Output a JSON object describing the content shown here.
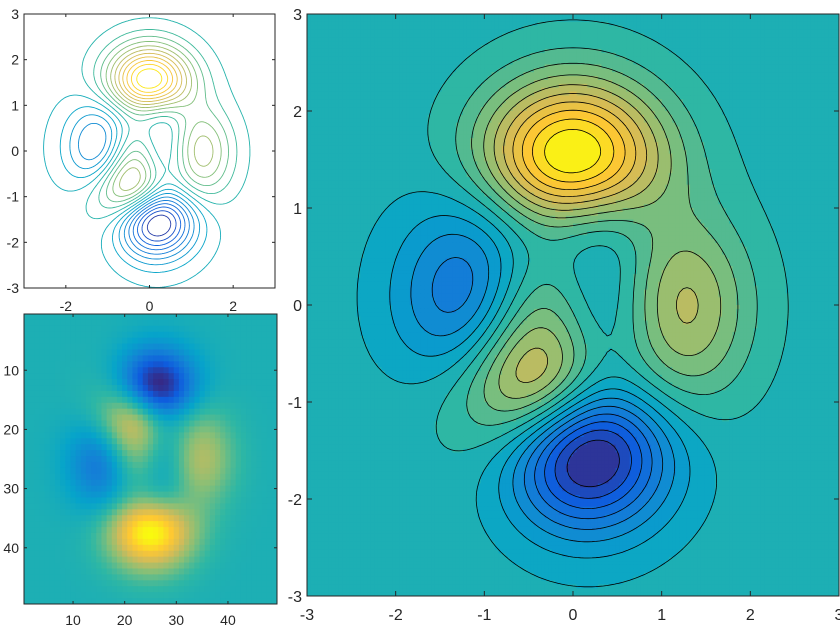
{
  "figure": {
    "background": "#ffffff"
  },
  "colormap": "parula",
  "colors": {
    "parula_stops": [
      "#352a87",
      "#0f5cdd",
      "#1481d6",
      "#06a4ca",
      "#2eb7a4",
      "#87bf77",
      "#d1bb59",
      "#fec832",
      "#f9fb0e"
    ],
    "axis": "#262626",
    "contour_line": "#000000"
  },
  "chart_data": [
    {
      "id": "contour-lines",
      "type": "contour",
      "function": "peaks",
      "title": "",
      "xlabel": "",
      "ylabel": "",
      "xlim": [
        -3,
        3
      ],
      "ylim": [
        -3,
        3
      ],
      "grid": false,
      "filled": false,
      "levels": 20,
      "x_ticks": [
        -2,
        0,
        2
      ],
      "x_tick_labels": [
        "-2",
        "0",
        "2"
      ],
      "y_ticks": [
        -3,
        -2,
        -1,
        0,
        1,
        2,
        3
      ],
      "y_tick_labels": [
        "-3",
        "-2",
        "-1",
        "0",
        "1",
        "2",
        "3"
      ],
      "z_range": [
        -6.55,
        8.1
      ],
      "extrema": [
        {
          "x": 0.0,
          "y": 1.58,
          "z": 8.1,
          "kind": "max"
        },
        {
          "x": 0.23,
          "y": -1.63,
          "z": -6.55,
          "kind": "min"
        },
        {
          "x": -1.35,
          "y": 0.2,
          "z": -3.05,
          "kind": "min"
        },
        {
          "x": 1.29,
          "y": 0.0,
          "z": 3.6,
          "kind": "max"
        },
        {
          "x": -0.46,
          "y": -0.63,
          "z": 3.8,
          "kind": "max"
        }
      ]
    },
    {
      "id": "image-grid",
      "type": "heatmap",
      "function": "peaks",
      "title": "",
      "xlabel": "",
      "ylabel": "",
      "grid_size": [
        49,
        49
      ],
      "y_direction": "reverse",
      "xlim": [
        0.5,
        49.5
      ],
      "ylim": [
        0.5,
        49.5
      ],
      "x_ticks": [
        10,
        20,
        30,
        40
      ],
      "x_tick_labels": [
        "10",
        "20",
        "30",
        "40"
      ],
      "y_ticks": [
        10,
        20,
        30,
        40
      ],
      "y_tick_labels": [
        "10",
        "20",
        "30",
        "40"
      ],
      "z_range": [
        -6.55,
        8.1
      ]
    },
    {
      "id": "filled-contour",
      "type": "contour",
      "function": "peaks",
      "title": "",
      "xlabel": "",
      "ylabel": "",
      "xlim": [
        -3,
        3
      ],
      "ylim": [
        -3,
        3
      ],
      "grid": false,
      "filled": true,
      "levels": 18,
      "x_ticks": [
        -3,
        -2,
        -1,
        0,
        1,
        2,
        3
      ],
      "x_tick_labels": [
        "-3",
        "-2",
        "-1",
        "0",
        "1",
        "2",
        "3"
      ],
      "y_ticks": [
        -3,
        -2,
        -1,
        0,
        1,
        2,
        3
      ],
      "y_tick_labels": [
        "-3",
        "-2",
        "-1",
        "0",
        "1",
        "2",
        "3"
      ],
      "z_range": [
        -6.55,
        8.1
      ]
    }
  ]
}
